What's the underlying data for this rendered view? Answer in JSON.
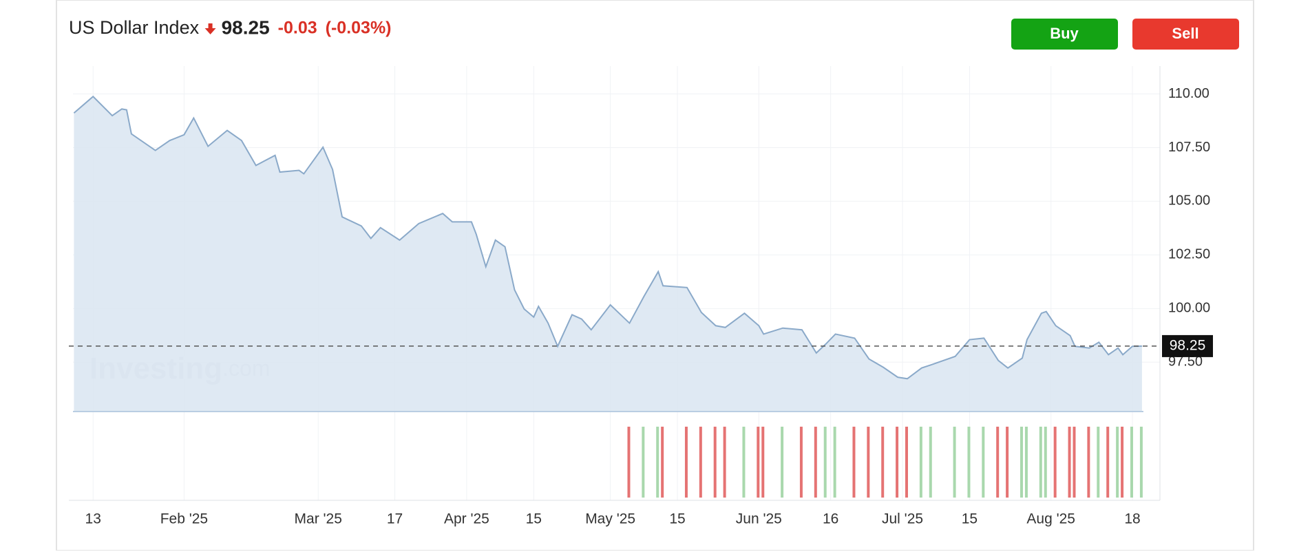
{
  "chart_data": {
    "type": "area",
    "title": "US Dollar Index",
    "price": 98.25,
    "change": -0.03,
    "change_percent": {
      "value": -0.03,
      "label": "(-0.03%)"
    },
    "color": "#8aa9c9",
    "fill": "#dce7f2",
    "up_color": "#a9d8ad",
    "down_color": "#e57373",
    "grid": true,
    "watermark": {
      "brand": "Investing",
      "suffix": ".com"
    },
    "x": [
      9,
      13,
      17,
      19,
      20,
      21,
      26,
      29,
      32,
      34,
      37,
      41,
      44,
      47,
      51,
      52,
      56,
      57,
      61,
      63,
      65,
      69,
      71,
      73,
      77,
      81,
      86,
      88,
      92,
      93,
      95,
      97,
      99,
      101,
      103,
      105,
      106,
      108,
      110,
      113,
      115,
      117,
      121,
      125,
      128,
      131,
      132,
      137,
      140,
      143,
      145,
      149,
      152,
      153,
      157,
      161,
      164,
      166,
      168,
      172,
      175,
      178,
      181,
      183,
      186,
      188,
      193,
      196,
      199,
      202,
      204,
      207,
      208,
      211,
      212,
      214,
      217,
      218,
      221,
      223,
      225,
      227,
      228,
      230,
      232
    ],
    "values": [
      109.11,
      109.88,
      108.99,
      109.3,
      109.26,
      108.14,
      107.37,
      107.83,
      108.1,
      108.88,
      107.56,
      108.3,
      107.83,
      106.67,
      107.14,
      106.36,
      106.44,
      106.28,
      107.52,
      106.48,
      104.27,
      103.85,
      103.27,
      103.77,
      103.19,
      103.96,
      104.43,
      104.04,
      104.04,
      103.46,
      101.95,
      103.19,
      102.88,
      100.87,
      99.98,
      99.6,
      100.1,
      99.32,
      98.24,
      99.71,
      99.51,
      99.01,
      100.17,
      99.32,
      100.56,
      101.72,
      101.06,
      100.98,
      99.82,
      99.2,
      99.12,
      99.78,
      99.2,
      98.81,
      99.09,
      99.01,
      97.93,
      98.35,
      98.81,
      98.62,
      97.65,
      97.26,
      96.8,
      96.73,
      97.23,
      97.38,
      97.77,
      98.55,
      98.62,
      97.58,
      97.23,
      97.69,
      98.55,
      99.78,
      99.86,
      99.2,
      98.74,
      98.24,
      98.16,
      98.43,
      97.85,
      98.16,
      97.85,
      98.24,
      98.25
    ],
    "xlim": [
      8.8,
      232.3
    ],
    "xticks": [
      13,
      {
        "value": 32,
        "label": "Feb '25"
      },
      {
        "value": 60,
        "label": "Mar '25"
      },
      {
        "value": 76,
        "label": "17"
      },
      {
        "value": 91,
        "label": "Apr '25"
      },
      {
        "value": 105,
        "label": "15"
      },
      {
        "value": 121,
        "label": "May '25"
      },
      {
        "value": 135,
        "label": "15"
      },
      {
        "value": 152,
        "label": "Jun '25"
      },
      {
        "value": 167,
        "label": "16"
      },
      {
        "value": 182,
        "label": "Jul '25"
      },
      {
        "value": 196,
        "label": "15"
      },
      {
        "value": 213,
        "label": "Aug '25"
      },
      {
        "value": 230,
        "label": "18"
      }
    ],
    "ylim": [
      95.2,
      111.3
    ],
    "yticks": [
      {
        "value": 97.5,
        "label": "97.50"
      },
      {
        "value": 100,
        "label": "100.00"
      },
      {
        "value": 102.5,
        "label": "102.50"
      },
      {
        "value": 105,
        "label": "105.00"
      },
      {
        "value": 107.5,
        "label": "107.50"
      },
      {
        "value": 110,
        "label": "110.00"
      }
    ]
  },
  "buttons": [
    "Buy",
    "Sell"
  ]
}
